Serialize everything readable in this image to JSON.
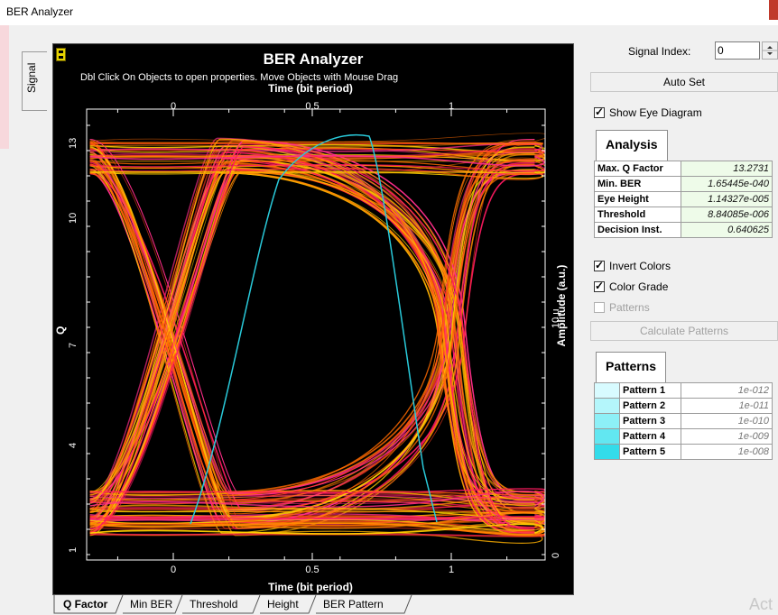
{
  "window": {
    "title": "BER Analyzer"
  },
  "side_tab": {
    "label": "Signal"
  },
  "plot": {
    "title": "BER Analyzer",
    "hint": "Dbl Click On Objects to open properties.  Move Objects with Mouse Drag",
    "top_axis_label": "Time (bit period)",
    "bottom_axis_label": "Time (bit period)",
    "left_axis_label": "Q",
    "right_axis_label": "Amplitude (a.u.)",
    "x_ticks": [
      "0",
      "0.5",
      "1"
    ],
    "q_ticks": [
      "13",
      "10",
      "7",
      "4",
      "1"
    ],
    "amp_ticks": [
      "10 μ",
      "0"
    ]
  },
  "bottom_tabs": [
    "Q Factor",
    "Min BER",
    "Threshold",
    "Height",
    "BER Pattern"
  ],
  "controls": {
    "signal_index_label": "Signal Index:",
    "signal_index_value": "0",
    "auto_set": "Auto Set",
    "show_eye": "Show Eye Diagram",
    "invert_colors": "Invert Colors",
    "color_grade": "Color Grade",
    "patterns_chk": "Patterns",
    "calc_patterns": "Calculate Patterns"
  },
  "analysis": {
    "tab": "Analysis",
    "rows": [
      {
        "k": "Max. Q Factor",
        "v": "13.2731"
      },
      {
        "k": "Min. BER",
        "v": "1.65445e-040"
      },
      {
        "k": "Eye Height",
        "v": "1.14327e-005"
      },
      {
        "k": "Threshold",
        "v": "8.84085e-006"
      },
      {
        "k": "Decision Inst.",
        "v": "0.640625"
      }
    ]
  },
  "patterns": {
    "tab": "Patterns",
    "rows": [
      {
        "k": "Pattern 1",
        "v": "1e-012",
        "color": "#d8fbff"
      },
      {
        "k": "Pattern 2",
        "v": "1e-011",
        "color": "#b4f6fb"
      },
      {
        "k": "Pattern 3",
        "v": "1e-010",
        "color": "#8df0f7"
      },
      {
        "k": "Pattern 4",
        "v": "1e-009",
        "color": "#62e7f1"
      },
      {
        "k": "Pattern 5",
        "v": "1e-008",
        "color": "#33dcea"
      }
    ]
  },
  "watermark": "Act",
  "colors": {
    "eye_traces": "#ff8c00",
    "q_curve": "#29c9d9",
    "background": "#000000"
  }
}
